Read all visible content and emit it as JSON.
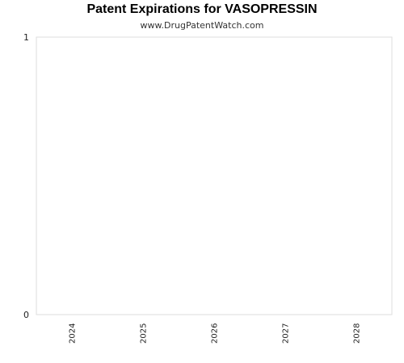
{
  "chart_data": {
    "type": "bar",
    "title": "Patent Expirations for VASOPRESSIN",
    "subtitle": "www.DrugPatentWatch.com",
    "xlabel": "",
    "ylabel": "",
    "categories": [
      "2024",
      "2025",
      "2026",
      "2027",
      "2028"
    ],
    "values": [
      0,
      0,
      0,
      0,
      0
    ],
    "ylim": [
      0,
      1
    ],
    "y_ticks": [
      "0",
      "1"
    ],
    "grid": false,
    "legend": "none",
    "colors": {
      "plot_border": "#dddddd",
      "text": "#222222"
    }
  }
}
